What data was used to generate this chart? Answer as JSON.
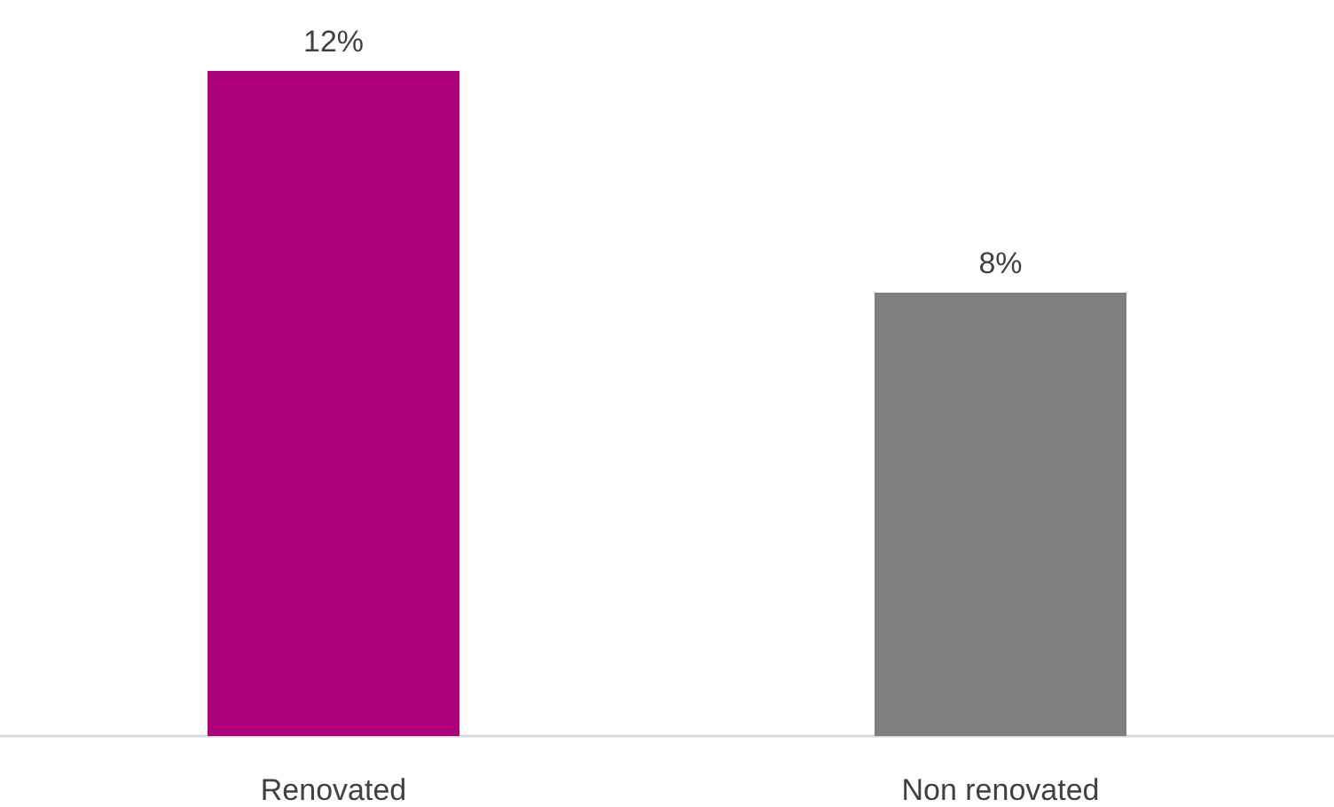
{
  "chart_data": {
    "type": "bar",
    "categories": [
      "Renovated",
      "Non renovated"
    ],
    "values": [
      12,
      8
    ],
    "colors": [
      "#ae007a",
      "#808080"
    ],
    "value_labels": [
      "12%",
      "8%"
    ],
    "tick_labels": "x"
  }
}
